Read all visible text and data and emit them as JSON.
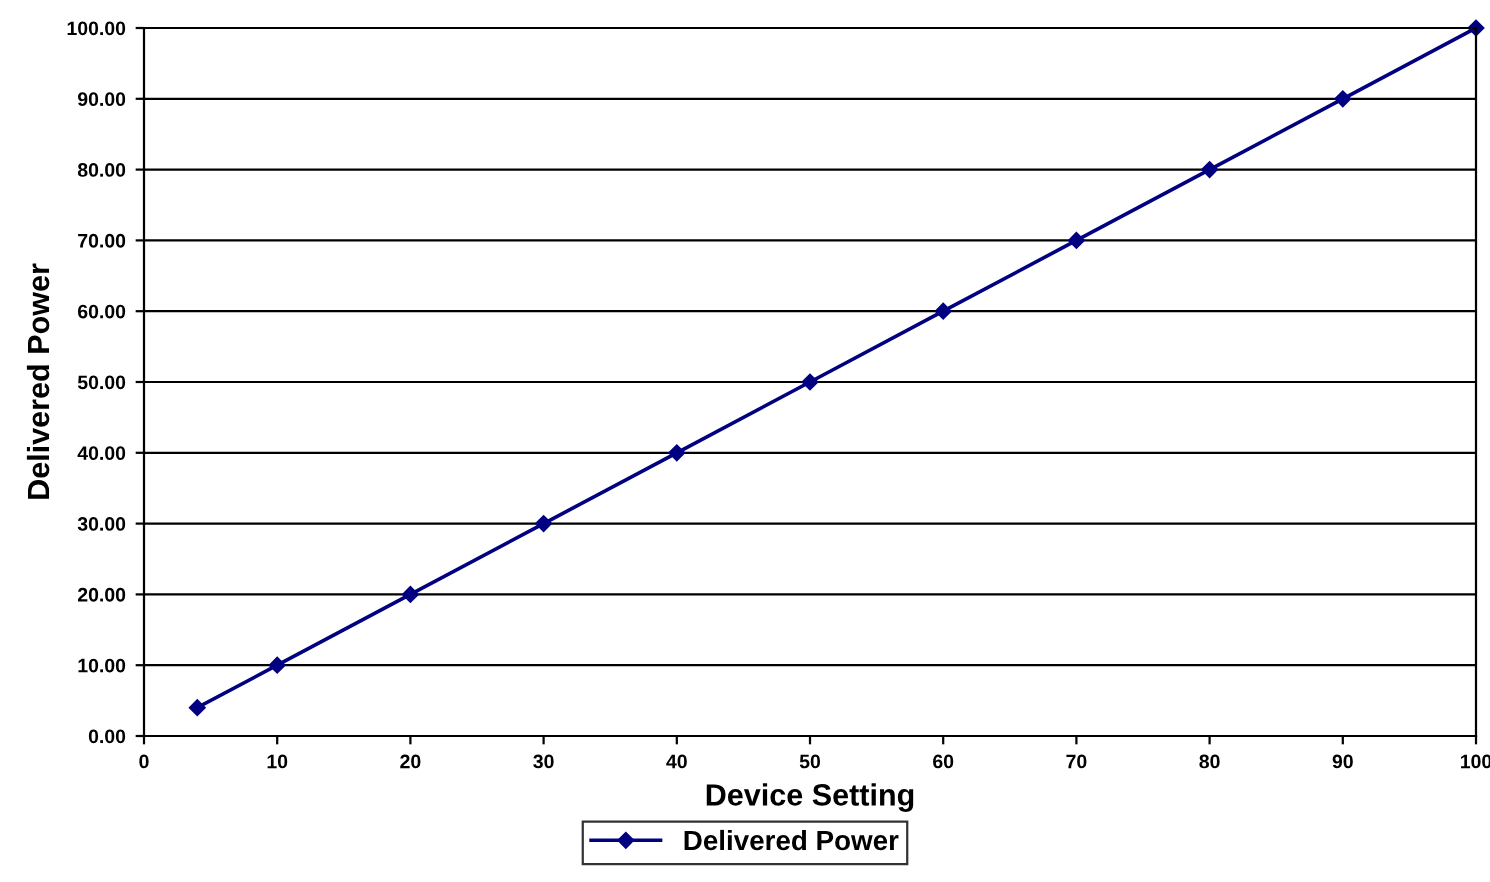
{
  "chart_data": {
    "type": "line",
    "xlabel": "Device Setting",
    "ylabel": "Delivered Power",
    "x": [
      4,
      10,
      20,
      30,
      40,
      50,
      60,
      70,
      80,
      90,
      100
    ],
    "series": [
      {
        "name": "Delivered Power",
        "color": "#000080",
        "values": [
          4,
          10,
          20,
          30,
          40,
          50,
          60,
          70,
          80,
          90,
          100
        ]
      }
    ],
    "xlim": [
      0,
      100
    ],
    "xticks": [
      0,
      10,
      20,
      30,
      40,
      50,
      60,
      70,
      80,
      90,
      100
    ],
    "ylim": [
      0,
      100
    ],
    "yticks": [
      {
        "value": 0,
        "label": "0.00"
      },
      {
        "value": 10,
        "label": "10.00"
      },
      {
        "value": 20,
        "label": "20.00"
      },
      {
        "value": 30,
        "label": "30.00"
      },
      {
        "value": 40,
        "label": "40.00"
      },
      {
        "value": 50,
        "label": "50.00"
      },
      {
        "value": 60,
        "label": "60.00"
      },
      {
        "value": 70,
        "label": "70.00"
      },
      {
        "value": 80,
        "label": "80.00"
      },
      {
        "value": 90,
        "label": "90.00"
      },
      {
        "value": 100,
        "label": "100.00"
      }
    ],
    "grid": "y",
    "legend": "bottom",
    "marker": "diamond",
    "line_style": "solid"
  }
}
